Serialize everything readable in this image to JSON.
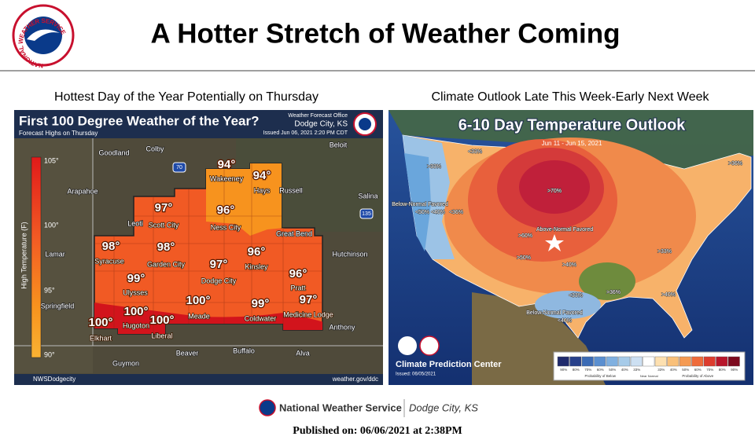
{
  "header": {
    "title": "A Hotter Stretch of Weather Coming",
    "logo_text": "NATIONAL WEATHER SERVICE"
  },
  "left_panel": {
    "heading": "Hottest Day of the Year Potentially on Thursday",
    "map": {
      "title": "First 100 Degree Weather of the Year?",
      "subtitle": "Forecast Highs on Thursday",
      "office": "Weather Forecast Office",
      "office_location": "Dodge City, KS",
      "issued": "Issued Jun 06, 2021 2:20 PM CDT",
      "legend_axis_label": "High Temperature (F)",
      "legend_ticks": [
        "105°",
        "100°",
        "95°",
        "90°"
      ],
      "cities": [
        {
          "name": "Wakeeney",
          "temp": "94°"
        },
        {
          "name": "Hays",
          "temp": "94°"
        },
        {
          "name": "Scott City",
          "temp": "97°"
        },
        {
          "name": "Ness City",
          "temp": "96°"
        },
        {
          "name": "Syracuse",
          "temp": "98°"
        },
        {
          "name": "Garden City",
          "temp": "98°"
        },
        {
          "name": "Dodge City",
          "temp": "97°"
        },
        {
          "name": "Kinsley",
          "temp": "96°"
        },
        {
          "name": "Ulysses",
          "temp": "99°"
        },
        {
          "name": "Pratt",
          "temp": "96°"
        },
        {
          "name": "Meade",
          "temp": "100°"
        },
        {
          "name": "Coldwater",
          "temp": "99°"
        },
        {
          "name": "Medicine Lodge",
          "temp": "97°"
        },
        {
          "name": "Hugoton",
          "temp": "100°"
        },
        {
          "name": "Elkhart",
          "temp": "100°"
        },
        {
          "name": "Liberal",
          "temp": "100°"
        }
      ],
      "places": [
        "Goodland",
        "Colby",
        "Beloit",
        "Arapahoe",
        "Russell",
        "Salina",
        "Leoti",
        "Great Bend",
        "Lamar",
        "Hutchinson",
        "Springfield",
        "Anthony",
        "Beaver",
        "Buffalo",
        "Alva",
        "Guymon"
      ],
      "highways": [
        "70",
        "135"
      ],
      "social": "NWSDodgecity",
      "url": "weather.gov/ddc"
    }
  },
  "right_panel": {
    "heading": "Climate Outlook Late This Week-Early Next Week",
    "map": {
      "title": "6-10 Day Temperature Outlook",
      "dates": "Jun 11 - Jun 15, 2021",
      "labels": [
        ">33%",
        "<33%",
        ">70%",
        ">36%",
        "Below-Normal Favored",
        "<50%",
        "<40%",
        "<36%",
        "Above-Normal Favored",
        ">60%",
        ">50%",
        ">40%",
        ">33%",
        ">36%",
        ">40%",
        "<33%",
        "Below-Normal Favored",
        "<40%"
      ],
      "source": "Climate Prediction Center",
      "issued": "Issued: 06/05/2021",
      "legend": {
        "below_caption": "Probability of Below",
        "above_caption": "Probability of Above",
        "below": [
          {
            "label": "90%",
            "color": "#1f2a6c"
          },
          {
            "label": "80%",
            "color": "#27408b"
          },
          {
            "label": "70%",
            "color": "#3b6bb5"
          },
          {
            "label": "60%",
            "color": "#5a8fd0"
          },
          {
            "label": "50%",
            "color": "#80b0e0"
          },
          {
            "label": "40%",
            "color": "#a6cbe9"
          },
          {
            "label": "33%",
            "color": "#cde0f2"
          }
        ],
        "near_normal": {
          "label": "Near Normal",
          "color": "#ffffff"
        },
        "above": [
          {
            "label": "33%",
            "color": "#fde0b0"
          },
          {
            "label": "40%",
            "color": "#f9c07a"
          },
          {
            "label": "50%",
            "color": "#f59a52"
          },
          {
            "label": "60%",
            "color": "#ef6b3a"
          },
          {
            "label": "70%",
            "color": "#dd3c2e"
          },
          {
            "label": "80%",
            "color": "#b8162b"
          },
          {
            "label": "90%",
            "color": "#7c0a1e"
          }
        ]
      }
    }
  },
  "footer": {
    "org": "National Weather Service",
    "office": "Dodge City, KS",
    "published": "Published on: 06/06/2021 at 2:38PM"
  }
}
